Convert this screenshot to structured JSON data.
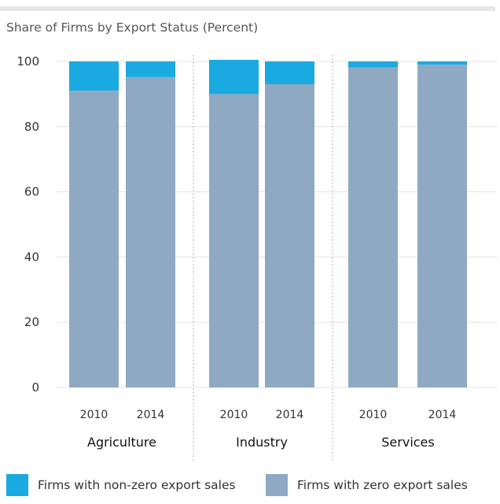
{
  "colors": {
    "nonzero": "#1ba9e1",
    "zero": "#8fa9c2",
    "grid": "#e2e2e2",
    "divider": "#9a9a9a"
  },
  "chart_data": {
    "type": "bar",
    "stacked": true,
    "title": "Share of Firms by Export Status (Percent)",
    "xlabel": "",
    "ylabel": "",
    "ylim": [
      0,
      100
    ],
    "yticks": [
      0,
      20,
      40,
      60,
      80,
      100
    ],
    "grid": true,
    "legend_position": "bottom",
    "groups": [
      {
        "name": "Agriculture",
        "categories": [
          "2010",
          "2014"
        ]
      },
      {
        "name": "Industry",
        "categories": [
          "2010",
          "2014"
        ]
      },
      {
        "name": "Services",
        "categories": [
          "2010",
          "2014"
        ]
      }
    ],
    "series": [
      {
        "name": "Firms with zero export sales",
        "color": "#8fa9c2",
        "values": [
          91,
          95.2,
          90,
          93,
          98.2,
          99
        ]
      },
      {
        "name": "Firms with non-zero export sales",
        "color": "#1ba9e1",
        "values": [
          9,
          4.8,
          10.5,
          7,
          1.8,
          1
        ]
      }
    ],
    "legend": [
      "Firms with non-zero export sales",
      "Firms with zero export sales"
    ]
  }
}
